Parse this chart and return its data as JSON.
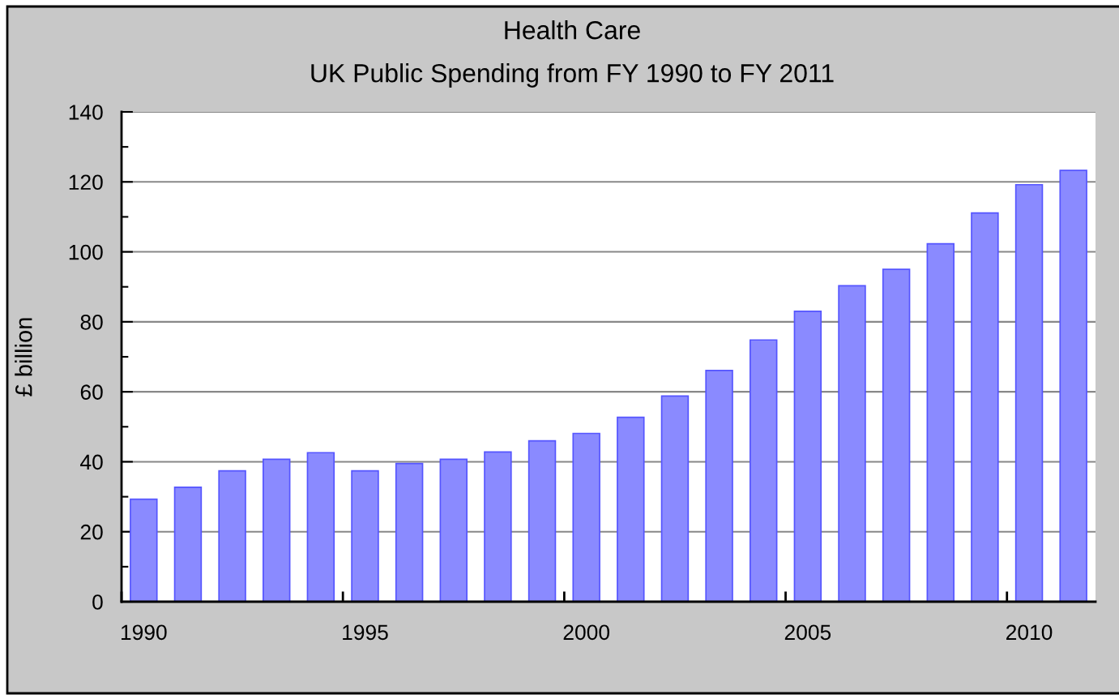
{
  "chart_data": {
    "type": "bar",
    "title": "Health Care",
    "subtitle": "UK Public Spending from FY 1990 to FY 2011",
    "ylabel": "£ billion",
    "categories": [
      "1990",
      null,
      null,
      null,
      null,
      "1995",
      null,
      null,
      null,
      null,
      "2000",
      null,
      null,
      null,
      null,
      "2005",
      null,
      null,
      null,
      null,
      "2010",
      null
    ],
    "values": [
      29.3,
      32.7,
      37.4,
      40.7,
      42.6,
      37.4,
      39.5,
      40.7,
      42.8,
      46.0,
      48.1,
      52.7,
      58.8,
      66.1,
      74.8,
      83.0,
      90.3,
      95.0,
      102.3,
      111.1,
      119.2,
      123.3
    ],
    "color": "#8a8aff",
    "ylim": [
      0,
      140
    ],
    "yticks": [
      0,
      {
        "value": 10,
        "label": null
      },
      20,
      {
        "value": 30,
        "label": null
      },
      40,
      {
        "value": 50,
        "label": null
      },
      60,
      {
        "value": 70,
        "label": null
      },
      80,
      {
        "value": 90,
        "label": null
      },
      100,
      {
        "value": 110,
        "label": null
      },
      120,
      {
        "value": 130,
        "label": null
      },
      140
    ],
    "grid": "y"
  }
}
